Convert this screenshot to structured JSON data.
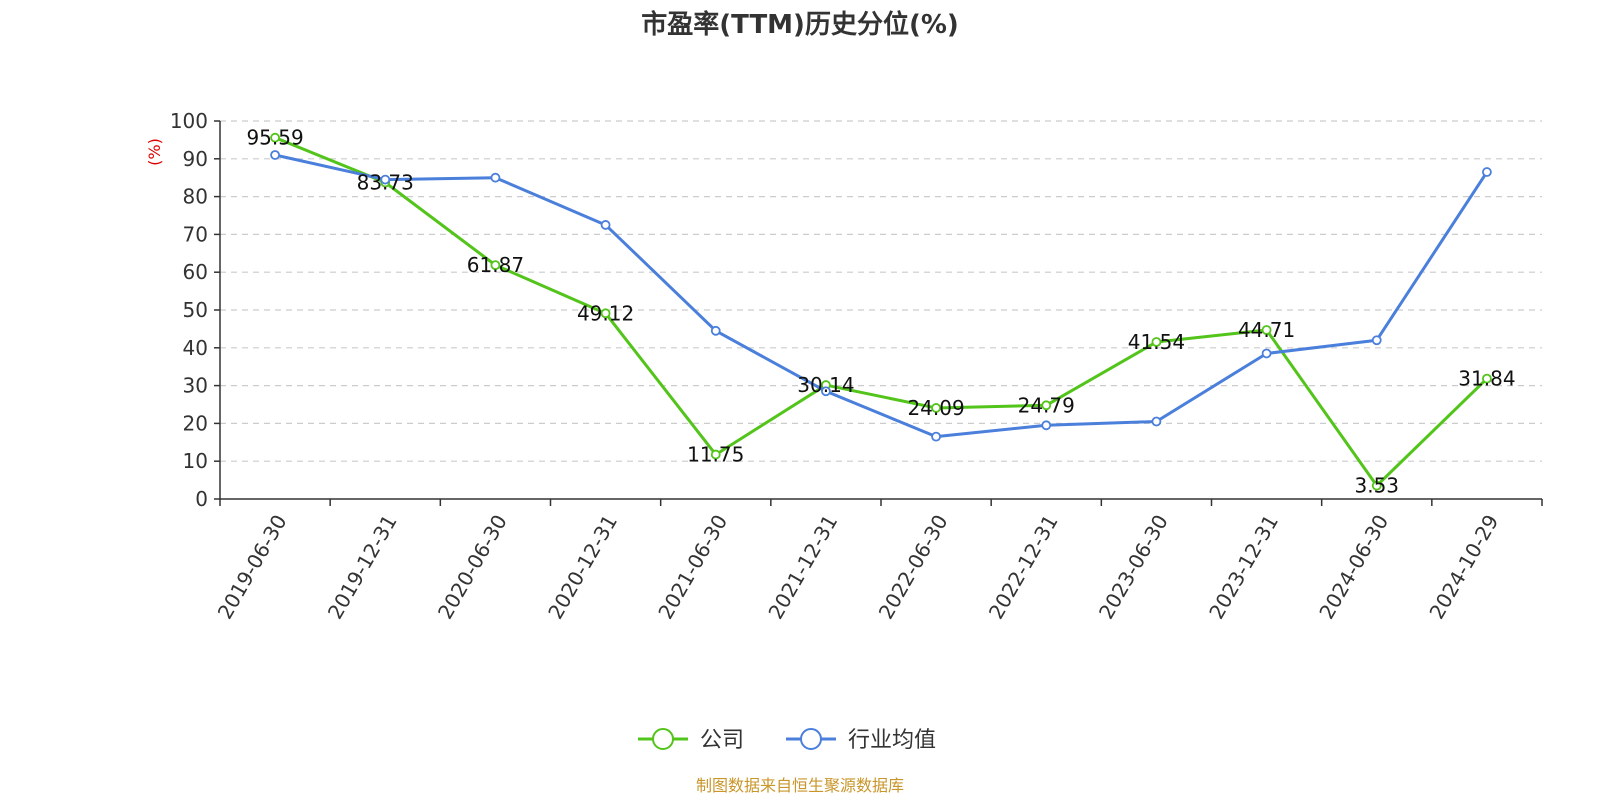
{
  "chart_data": {
    "type": "line",
    "title": "市盈率(TTM)历史分位(%)",
    "ylabel": "(%)",
    "ylim": [
      0,
      100
    ],
    "yticks": [
      0,
      10,
      20,
      30,
      40,
      50,
      60,
      70,
      80,
      90,
      100
    ],
    "grid": true,
    "legend_position": "bottom",
    "categories": [
      "2019-06-30",
      "2019-12-31",
      "2020-06-30",
      "2020-12-31",
      "2021-06-30",
      "2021-12-31",
      "2022-06-30",
      "2022-12-31",
      "2023-06-30",
      "2023-12-31",
      "2024-06-30",
      "2024-10-29"
    ],
    "series": [
      {
        "name": "公司",
        "color": "#52c41a",
        "show_labels": true,
        "values": [
          95.59,
          83.73,
          61.87,
          49.12,
          11.75,
          30.14,
          24.09,
          24.79,
          41.54,
          44.71,
          3.53,
          31.84
        ]
      },
      {
        "name": "行业均值",
        "color": "#4a7fdb",
        "show_labels": false,
        "values": [
          91,
          84.5,
          85,
          72.5,
          44.5,
          28.5,
          16.5,
          19.5,
          20.5,
          38.5,
          42,
          86.5
        ]
      }
    ],
    "source": "制图数据来自恒生聚源数据库"
  },
  "colors": {
    "axis": "#333333",
    "grid": "#cccccc",
    "ylabel": "#e00000",
    "source": "#c8962a"
  }
}
